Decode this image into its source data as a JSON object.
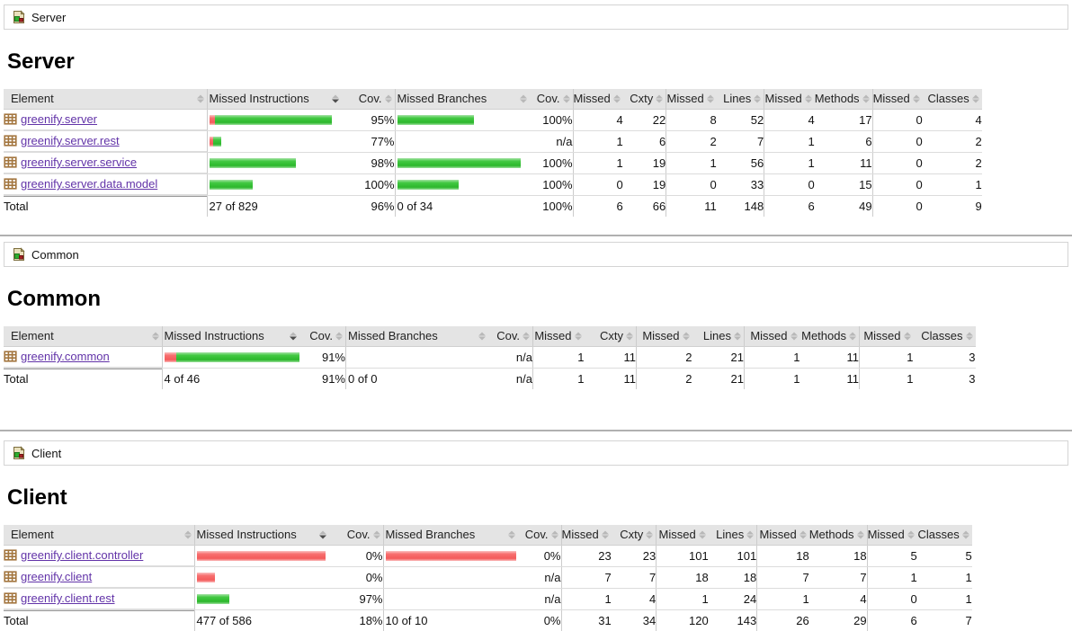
{
  "colors": {
    "green_bar": "#2cb72c",
    "red_bar": "#f45b5b",
    "link": "#6233a8",
    "header_bg": "#e4e4e4"
  },
  "columns": [
    "Element",
    "Missed Instructions",
    "Cov.",
    "Missed Branches",
    "Cov.",
    "Missed",
    "Cxty",
    "Missed",
    "Lines",
    "Missed",
    "Methods",
    "Missed",
    "Classes"
  ],
  "sections": [
    {
      "breadcrumb": "Server",
      "title": "Server",
      "rows": [
        {
          "element": "greenify.server",
          "ins_red": 6,
          "ins_green": 130,
          "ins_cov": "95%",
          "br_red": 0,
          "br_green": 85,
          "br_cov": "100%",
          "c": [
            "4",
            "22",
            "8",
            "52",
            "4",
            "17",
            "0",
            "4"
          ]
        },
        {
          "element": "greenify.server.rest",
          "ins_red": 4,
          "ins_green": 9,
          "ins_cov": "77%",
          "br_red": 0,
          "br_green": 0,
          "br_cov": "n/a",
          "c": [
            "1",
            "6",
            "2",
            "7",
            "1",
            "6",
            "0",
            "2"
          ]
        },
        {
          "element": "greenify.server.service",
          "ins_red": 0,
          "ins_green": 96,
          "ins_cov": "98%",
          "br_red": 0,
          "br_green": 137,
          "br_cov": "100%",
          "c": [
            "1",
            "19",
            "1",
            "56",
            "1",
            "11",
            "0",
            "2"
          ]
        },
        {
          "element": "greenify.server.data.model",
          "ins_red": 0,
          "ins_green": 48,
          "ins_cov": "100%",
          "br_red": 0,
          "br_green": 68,
          "br_cov": "100%",
          "c": [
            "0",
            "19",
            "0",
            "33",
            "0",
            "15",
            "0",
            "1"
          ]
        }
      ],
      "total": {
        "label": "Total",
        "ins": "27 of 829",
        "ins_cov": "96%",
        "br": "0 of 34",
        "br_cov": "100%",
        "c": [
          "6",
          "66",
          "11",
          "148",
          "6",
          "49",
          "0",
          "9"
        ]
      }
    },
    {
      "breadcrumb": "Common",
      "title": "Common",
      "rows": [
        {
          "element": "greenify.common",
          "ins_red": 13,
          "ins_green": 137,
          "ins_cov": "91%",
          "br_red": 0,
          "br_green": 0,
          "br_cov": "n/a",
          "c": [
            "1",
            "11",
            "2",
            "21",
            "1",
            "11",
            "1",
            "3"
          ]
        }
      ],
      "total": {
        "label": "Total",
        "ins": "4 of 46",
        "ins_cov": "91%",
        "br": "0 of 0",
        "br_cov": "n/a",
        "c": [
          "1",
          "11",
          "2",
          "21",
          "1",
          "11",
          "1",
          "3"
        ]
      }
    },
    {
      "breadcrumb": "Client",
      "title": "Client",
      "rows": [
        {
          "element": "greenify.client.controller",
          "ins_red": 143,
          "ins_green": 0,
          "ins_cov": "0%",
          "br_red": 145,
          "br_green": 0,
          "br_cov": "0%",
          "c": [
            "23",
            "23",
            "101",
            "101",
            "18",
            "18",
            "5",
            "5"
          ]
        },
        {
          "element": "greenify.client",
          "ins_red": 20,
          "ins_green": 0,
          "ins_cov": "0%",
          "br_red": 0,
          "br_green": 0,
          "br_cov": "n/a",
          "c": [
            "7",
            "7",
            "18",
            "18",
            "7",
            "7",
            "1",
            "1"
          ]
        },
        {
          "element": "greenify.client.rest",
          "ins_red": 0,
          "ins_green": 36,
          "ins_cov": "97%",
          "br_red": 0,
          "br_green": 0,
          "br_cov": "n/a",
          "c": [
            "1",
            "4",
            "1",
            "24",
            "1",
            "4",
            "0",
            "1"
          ]
        }
      ],
      "total": {
        "label": "Total",
        "ins": "477 of 586",
        "ins_cov": "18%",
        "br": "10 of 10",
        "br_cov": "0%",
        "c": [
          "31",
          "34",
          "120",
          "143",
          "26",
          "29",
          "6",
          "7"
        ]
      }
    }
  ]
}
